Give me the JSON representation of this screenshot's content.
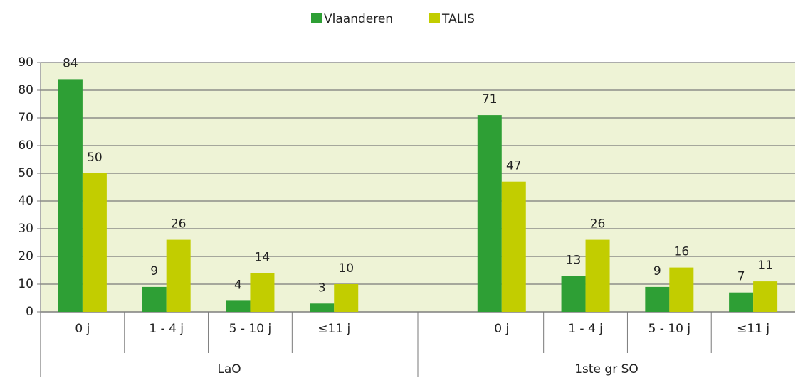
{
  "chart_data": {
    "type": "bar",
    "categories": [
      "0 j",
      "1 - 4 j",
      "5 - 10 j",
      "≤11 j",
      null,
      "0 j",
      "1 - 4 j",
      "5 - 10 j",
      "≤11 j"
    ],
    "groups": [
      "LaO",
      "1ste gr SO"
    ],
    "series": [
      {
        "name": "Vlaanderen",
        "color": "#2e9f35",
        "values": [
          84,
          9,
          4,
          3,
          null,
          71,
          13,
          9,
          7
        ]
      },
      {
        "name": "TALIS",
        "color": "#c2cd00",
        "values": [
          50,
          26,
          14,
          10,
          null,
          47,
          26,
          16,
          11
        ]
      }
    ],
    "ylim": [
      0,
      90
    ],
    "yticks": [
      0,
      10,
      20,
      30,
      40,
      50,
      60,
      70,
      80,
      90
    ],
    "grid": true,
    "legend": "top"
  }
}
